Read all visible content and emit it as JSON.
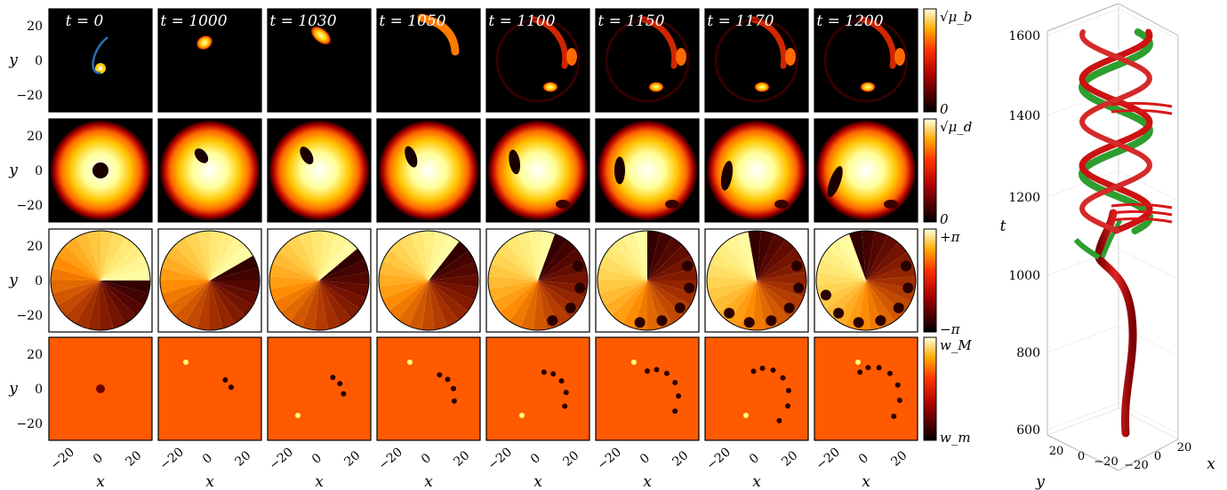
{
  "chart_data": {
    "type": "heatmap",
    "panel_grid": {
      "rows": 4,
      "columns": 8,
      "time_labels": [
        "t = 0",
        "t = 1000",
        "t = 1030",
        "t = 1050",
        "t = 1100",
        "t = 1150",
        "t = 1170",
        "t = 1200"
      ],
      "row_ylabel": "y",
      "col_xlabel": "x",
      "ytick_labels": [
        "20",
        "0",
        "−20"
      ],
      "xtick_labels": [
        "−20",
        "0",
        "20"
      ],
      "rows_info": [
        {
          "quantity": "√μ_b",
          "colorbar_max": "√μ_b",
          "colorbar_min": "0",
          "colormap": "hot"
        },
        {
          "quantity": "√μ_d",
          "colorbar_max": "√μ_d",
          "colorbar_min": "0",
          "colormap": "hot"
        },
        {
          "quantity": "phase",
          "colorbar_max": "+π",
          "colorbar_min": "−π",
          "colormap": "hot"
        },
        {
          "quantity": "w",
          "colorbar_max": "w_M",
          "colorbar_min": "w_m",
          "colormap": "hot"
        }
      ],
      "vortex_angle_deg": [
        0,
        -30,
        -40,
        -52,
        -70,
        -90,
        -100,
        -110
      ]
    },
    "iso_plot": {
      "type": "3d-isosurface",
      "zlabel": "t",
      "zticks": [
        "1600",
        "1400",
        "1200",
        "1000",
        "800",
        "600"
      ],
      "xlabel": "x",
      "ylabel": "y",
      "xticks": [
        "−20",
        "0",
        "20"
      ],
      "yticks": [
        "20",
        "0",
        "−20"
      ],
      "series_colors": {
        "red": "#cc1111",
        "green": "#2e9e2e"
      }
    }
  }
}
